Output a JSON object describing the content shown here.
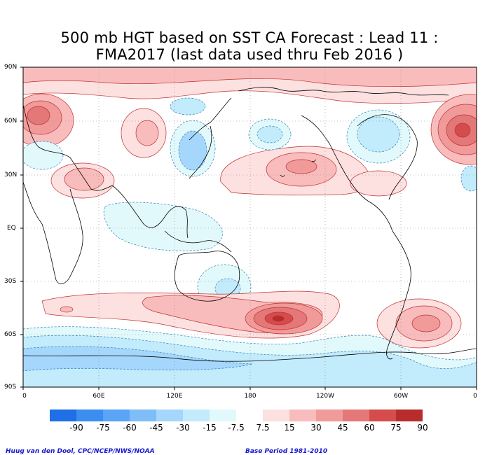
{
  "title": {
    "line1": "500 mb HGT based on SST CA Forecast : Lead 11 :",
    "line2": "FMA2017 (last data used thru Feb 2016 )"
  },
  "lat_labels": [
    "90N",
    "60N",
    "30N",
    "EQ",
    "30S",
    "60S",
    "90S"
  ],
  "lon_labels": [
    "0",
    "60E",
    "120E",
    "180",
    "120W",
    "60W",
    "0"
  ],
  "colorbar": {
    "labels": [
      "-90",
      "-75",
      "-60",
      "-45",
      "-30",
      "-15",
      "-7.5",
      "7.5",
      "15",
      "30",
      "45",
      "60",
      "75",
      "90"
    ],
    "colors": [
      "#1f6fe6",
      "#3b8df0",
      "#5aa5f5",
      "#7ebdf8",
      "#a5d6fb",
      "#c2ebfb",
      "#e2f9fb",
      "#ffffff",
      "#fde0e0",
      "#f9bcbc",
      "#f19a9a",
      "#e47878",
      "#d44c4c",
      "#b82c2c"
    ]
  },
  "footer": {
    "left": "Huug van den Dool, CPC/NCEP/NWS/NOAA",
    "right": "Base Period 1981-2010"
  }
}
